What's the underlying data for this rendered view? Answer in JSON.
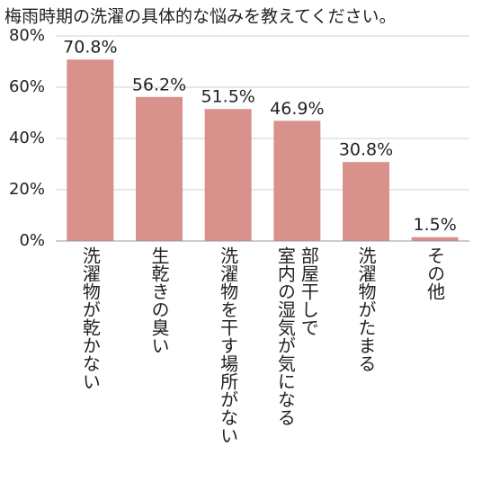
{
  "chart_data": {
    "type": "bar",
    "title": "梅雨時期の洗濯の具体的な悩みを教えてください。",
    "categories": [
      "洗濯物が乾かない",
      "生乾きの臭い",
      "洗濯物を干す場所がない",
      "部屋干しで\n室内の湿気が気になる",
      "洗濯物がたまる",
      "その他"
    ],
    "values": [
      70.8,
      56.2,
      51.5,
      46.9,
      30.8,
      1.5
    ],
    "value_labels": [
      "70.8%",
      "56.2%",
      "51.5%",
      "46.9%",
      "30.8%",
      "1.5%"
    ],
    "color": "#d9918c",
    "ylim": [
      0,
      80
    ],
    "yticks": [
      {
        "value": 0,
        "label": "0%"
      },
      {
        "value": 20,
        "label": "20%"
      },
      {
        "value": 40,
        "label": "40%"
      },
      {
        "value": 60,
        "label": "60%"
      },
      {
        "value": 80,
        "label": "80%"
      }
    ],
    "grid": true
  }
}
